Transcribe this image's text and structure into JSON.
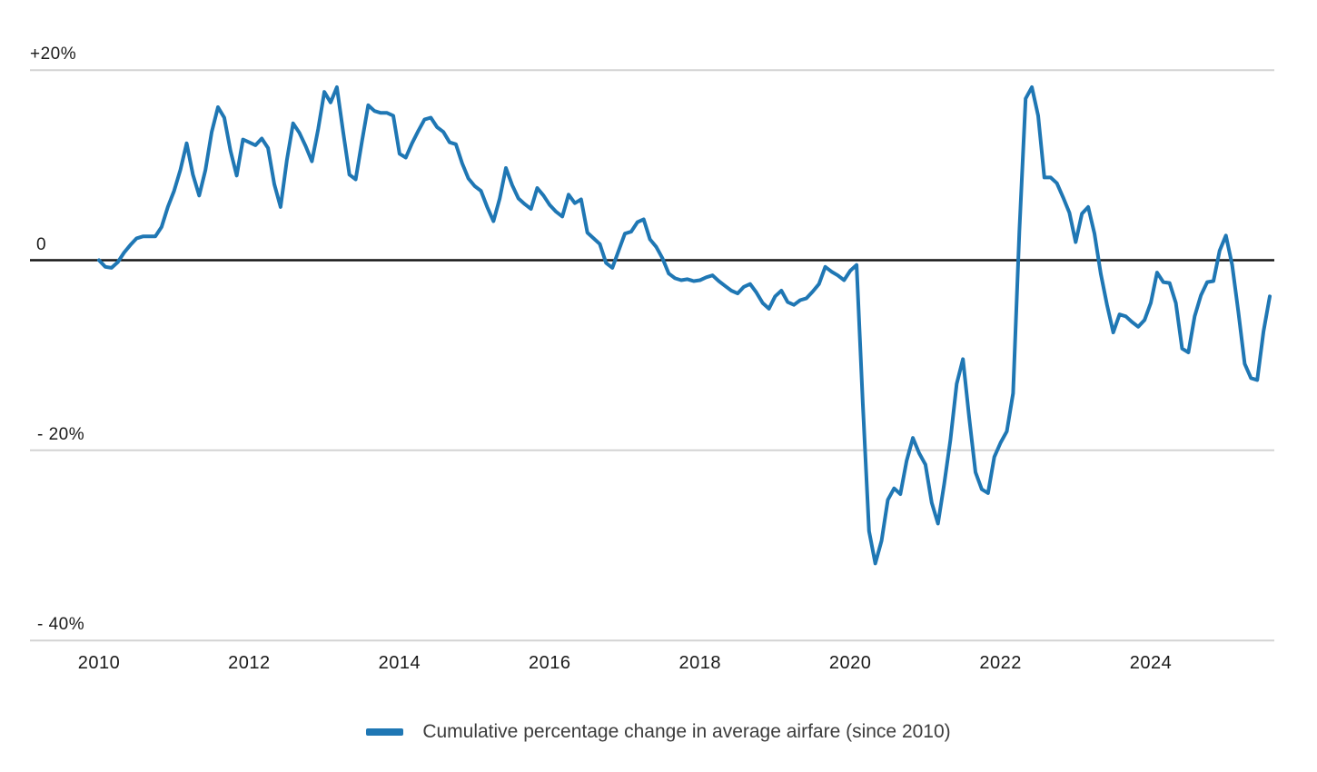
{
  "chart_data": {
    "type": "line",
    "title": "",
    "xlabel": "",
    "ylabel": "",
    "ylim": [
      -40,
      20
    ],
    "x_range": [
      "2010-01",
      "2025-08"
    ],
    "grid": "horizontal",
    "zero_line": true,
    "legend_position": "bottom-center",
    "y_ticks": [
      {
        "value": 20,
        "label": "+20%"
      },
      {
        "value": 0,
        "label": "0"
      },
      {
        "value": -20,
        "label": "- 20%"
      },
      {
        "value": -40,
        "label": "- 40%"
      }
    ],
    "x_ticks": [
      {
        "year": 2010,
        "label": "2010"
      },
      {
        "year": 2012,
        "label": "2012"
      },
      {
        "year": 2014,
        "label": "2014"
      },
      {
        "year": 2016,
        "label": "2016"
      },
      {
        "year": 2018,
        "label": "2018"
      },
      {
        "year": 2020,
        "label": "2020"
      },
      {
        "year": 2022,
        "label": "2022"
      },
      {
        "year": 2024,
        "label": "2024"
      }
    ],
    "series": [
      {
        "name": "Cumulative percentage change in average airfare (since 2010)",
        "color": "#1f77b4",
        "frequency": "monthly",
        "start_year": 2010,
        "start_month": 1,
        "values": [
          0.0,
          -0.7,
          -0.8,
          -0.2,
          0.8,
          1.6,
          2.3,
          2.5,
          2.5,
          2.5,
          3.5,
          5.6,
          7.3,
          9.5,
          12.3,
          9.0,
          6.8,
          9.5,
          13.5,
          16.1,
          15.0,
          11.5,
          8.9,
          12.7,
          12.4,
          12.1,
          12.8,
          11.8,
          8.0,
          5.6,
          10.5,
          14.4,
          13.4,
          12.0,
          10.4,
          13.8,
          17.7,
          16.6,
          18.2,
          13.5,
          9.0,
          8.5,
          12.5,
          16.3,
          15.7,
          15.5,
          15.5,
          15.2,
          11.2,
          10.8,
          12.3,
          13.6,
          14.8,
          15.0,
          14.0,
          13.5,
          12.4,
          12.2,
          10.2,
          8.6,
          7.8,
          7.3,
          5.6,
          4.1,
          6.5,
          9.7,
          7.9,
          6.5,
          5.9,
          5.4,
          7.6,
          6.8,
          5.8,
          5.1,
          4.6,
          6.9,
          6.0,
          6.4,
          2.9,
          2.3,
          1.7,
          -0.3,
          -0.8,
          1.0,
          2.8,
          3.0,
          4.0,
          4.3,
          2.2,
          1.4,
          0.2,
          -1.4,
          -1.9,
          -2.1,
          -2.0,
          -2.2,
          -2.1,
          -1.8,
          -1.6,
          -2.2,
          -2.7,
          -3.2,
          -3.5,
          -2.8,
          -2.5,
          -3.4,
          -4.5,
          -5.1,
          -3.8,
          -3.2,
          -4.4,
          -4.7,
          -4.2,
          -4.0,
          -3.3,
          -2.5,
          -0.7,
          -1.2,
          -1.6,
          -2.1,
          -1.1,
          -0.5,
          -15.0,
          -28.5,
          -31.9,
          -29.5,
          -25.2,
          -24.0,
          -24.6,
          -21.1,
          -18.7,
          -20.3,
          -21.5,
          -25.5,
          -27.7,
          -23.5,
          -18.9,
          -13.0,
          -10.4,
          -16.6,
          -22.3,
          -24.1,
          -24.5,
          -20.7,
          -19.2,
          -18.0,
          -14.0,
          3.0,
          17.0,
          18.2,
          15.2,
          8.7,
          8.7,
          8.1,
          6.6,
          5.0,
          1.9,
          4.9,
          5.6,
          2.8,
          -1.4,
          -4.7,
          -7.6,
          -5.7,
          -5.9,
          -6.5,
          -7.0,
          -6.3,
          -4.5,
          -1.3,
          -2.3,
          -2.4,
          -4.5,
          -9.3,
          -9.7,
          -5.9,
          -3.7,
          -2.3,
          -2.2,
          1.0,
          2.6,
          -0.5,
          -5.5,
          -10.9,
          -12.4,
          -12.6,
          -7.5,
          -3.8
        ]
      }
    ],
    "style": {
      "line_color": "#1f77b4",
      "line_width": 4,
      "gridline_color": "#d3d3d3",
      "zero_line_color": "#151515",
      "tick_label_color": "#1a1a1a",
      "legend_text_color": "#3c3c3c",
      "background": "#ffffff"
    }
  }
}
